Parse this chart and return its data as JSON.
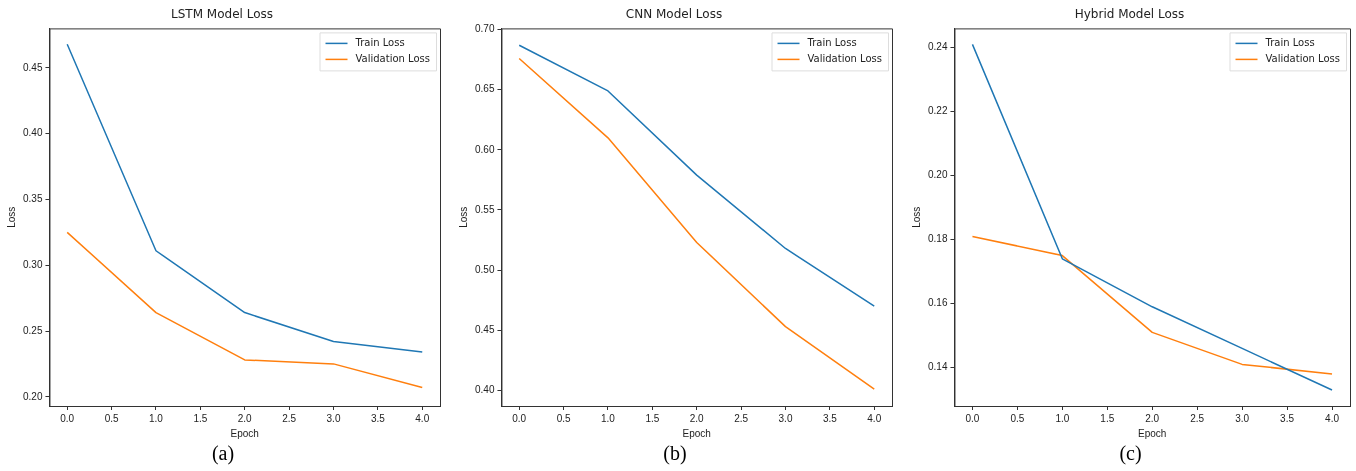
{
  "chart_data": [
    {
      "type": "line",
      "title": "LSTM Model Loss",
      "xlabel": "Epoch",
      "ylabel": "Loss",
      "x": [
        0,
        1,
        2,
        3,
        4
      ],
      "series": [
        {
          "name": "Train Loss",
          "color": "#1f77b4",
          "values": [
            0.468,
            0.311,
            0.264,
            0.242,
            0.234
          ]
        },
        {
          "name": "Validation Loss",
          "color": "#ff7f0e",
          "values": [
            0.325,
            0.264,
            0.228,
            0.225,
            0.207
          ]
        }
      ],
      "xlim": [
        -0.2,
        4.2
      ],
      "ylim": [
        0.193,
        0.48
      ],
      "xticks": [
        {
          "value": 0,
          "label": "0.0"
        },
        {
          "value": 0.5,
          "label": "0.5"
        },
        {
          "value": 1,
          "label": "1.0"
        },
        {
          "value": 1.5,
          "label": "1.5"
        },
        {
          "value": 2,
          "label": "2.0"
        },
        {
          "value": 2.5,
          "label": "2.5"
        },
        {
          "value": 3,
          "label": "3.0"
        },
        {
          "value": 3.5,
          "label": "3.5"
        },
        {
          "value": 4,
          "label": "4.0"
        }
      ],
      "yticks": [
        {
          "value": 0.2,
          "label": "0.20"
        },
        {
          "value": 0.25,
          "label": "0.25"
        },
        {
          "value": 0.3,
          "label": "0.30"
        },
        {
          "value": 0.35,
          "label": "0.35"
        },
        {
          "value": 0.4,
          "label": "0.40"
        },
        {
          "value": 0.45,
          "label": "0.45"
        }
      ],
      "grid": false,
      "legend": "top right",
      "annotations": [
        "(a)"
      ]
    },
    {
      "type": "line",
      "title": "CNN Model Loss",
      "xlabel": "Epoch",
      "ylabel": "Loss",
      "x": [
        0,
        1,
        2,
        3,
        4
      ],
      "series": [
        {
          "name": "Train Loss",
          "color": "#1f77b4",
          "values": [
            0.687,
            0.649,
            0.579,
            0.518,
            0.47
          ]
        },
        {
          "name": "Validation Loss",
          "color": "#ff7f0e",
          "values": [
            0.676,
            0.61,
            0.523,
            0.453,
            0.401
          ]
        }
      ],
      "xlim": [
        -0.2,
        4.2
      ],
      "ylim": [
        0.387,
        0.701
      ],
      "xticks": [
        {
          "value": 0,
          "label": "0.0"
        },
        {
          "value": 0.5,
          "label": "0.5"
        },
        {
          "value": 1,
          "label": "1.0"
        },
        {
          "value": 1.5,
          "label": "1.5"
        },
        {
          "value": 2,
          "label": "2.0"
        },
        {
          "value": 2.5,
          "label": "2.5"
        },
        {
          "value": 3,
          "label": "3.0"
        },
        {
          "value": 3.5,
          "label": "3.5"
        },
        {
          "value": 4,
          "label": "4.0"
        }
      ],
      "yticks": [
        {
          "value": 0.4,
          "label": "0.40"
        },
        {
          "value": 0.45,
          "label": "0.45"
        },
        {
          "value": 0.5,
          "label": "0.50"
        },
        {
          "value": 0.55,
          "label": "0.55"
        },
        {
          "value": 0.6,
          "label": "0.60"
        },
        {
          "value": 0.65,
          "label": "0.65"
        },
        {
          "value": 0.7,
          "label": "0.70"
        }
      ],
      "grid": false,
      "legend": "top right",
      "annotations": [
        "(b)"
      ]
    },
    {
      "type": "line",
      "title": "Hybrid Model Loss",
      "xlabel": "Epoch",
      "ylabel": "Loss",
      "x": [
        0,
        1,
        2,
        3,
        4
      ],
      "series": [
        {
          "name": "Train Loss",
          "color": "#1f77b4",
          "values": [
            0.241,
            0.174,
            0.159,
            0.146,
            0.133
          ]
        },
        {
          "name": "Validation Loss",
          "color": "#ff7f0e",
          "values": [
            0.181,
            0.175,
            0.151,
            0.141,
            0.138
          ]
        }
      ],
      "xlim": [
        -0.2,
        4.2
      ],
      "ylim": [
        0.128,
        0.246
      ],
      "xticks": [
        {
          "value": 0,
          "label": "0.0"
        },
        {
          "value": 0.5,
          "label": "0.5"
        },
        {
          "value": 1,
          "label": "1.0"
        },
        {
          "value": 1.5,
          "label": "1.5"
        },
        {
          "value": 2,
          "label": "2.0"
        },
        {
          "value": 2.5,
          "label": "2.5"
        },
        {
          "value": 3,
          "label": "3.0"
        },
        {
          "value": 3.5,
          "label": "3.5"
        },
        {
          "value": 4,
          "label": "4.0"
        }
      ],
      "yticks": [
        {
          "value": 0.14,
          "label": "0.14"
        },
        {
          "value": 0.16,
          "label": "0.16"
        },
        {
          "value": 0.18,
          "label": "0.18"
        },
        {
          "value": 0.2,
          "label": "0.20"
        },
        {
          "value": 0.22,
          "label": "0.22"
        },
        {
          "value": 0.24,
          "label": "0.24"
        }
      ],
      "grid": false,
      "legend": "top right",
      "annotations": [
        "(c)"
      ]
    }
  ]
}
